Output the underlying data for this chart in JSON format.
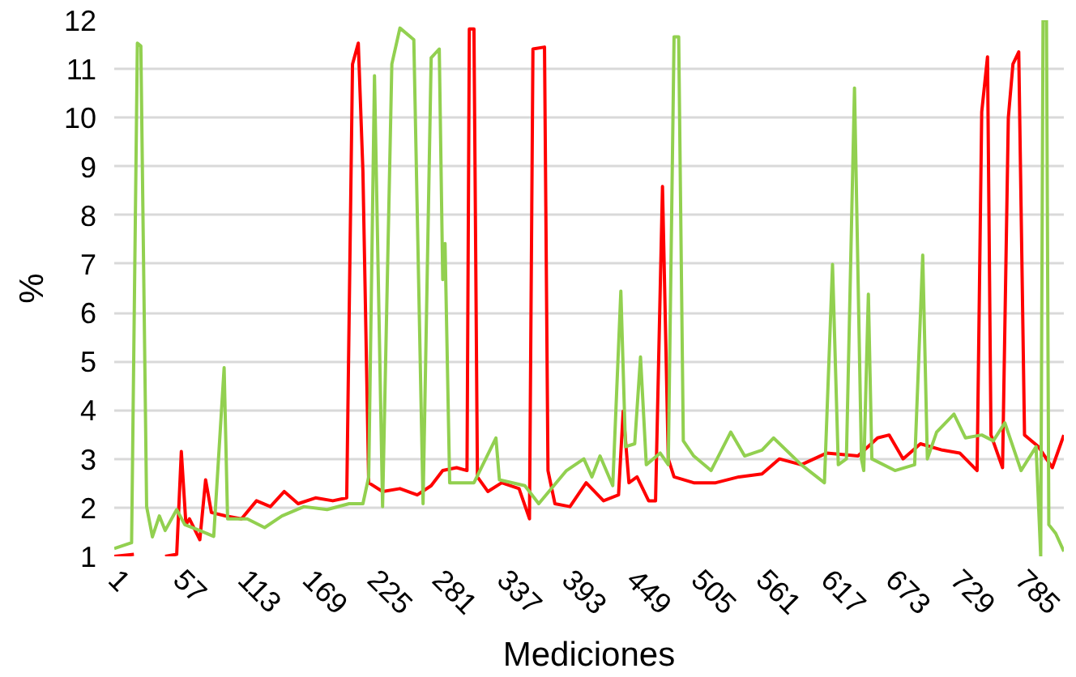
{
  "chart_data": {
    "type": "line",
    "xlabel": "Mediciones",
    "ylabel": "%",
    "xlim": [
      1,
      822
    ],
    "ylim": [
      1,
      12
    ],
    "xticks": [
      1,
      57,
      113,
      169,
      225,
      281,
      337,
      393,
      449,
      505,
      561,
      617,
      673,
      729,
      785
    ],
    "yticks": [
      1,
      2,
      3,
      4,
      5,
      6,
      7,
      8,
      9,
      10,
      11,
      12
    ],
    "grid": "y",
    "line_style": "solid",
    "series": [
      {
        "color": "#ff0000",
        "x": [
          1,
          18,
          26,
          42,
          45,
          55,
          59,
          63,
          66,
          75,
          80,
          85,
          97,
          111,
          124,
          136,
          148,
          160,
          175,
          190,
          202,
          207,
          212,
          216,
          221,
          233,
          248,
          263,
          275,
          285,
          297,
          306,
          308,
          312,
          315,
          324,
          336,
          351,
          360,
          363,
          373,
          376,
          382,
          395,
          409,
          424,
          437,
          441,
          446,
          453,
          463,
          469,
          475,
          480,
          485,
          502,
          521,
          541,
          561,
          576,
          595,
          617,
          644,
          661,
          671,
          683,
          698,
          717,
          732,
          747,
          751,
          756,
          759,
          769,
          774,
          778,
          783,
          788,
          800,
          812,
          822
        ],
        "values": [
          1.0,
          1.04,
          null,
          null,
          1.0,
          1.04,
          3.15,
          1.65,
          1.77,
          1.34,
          2.57,
          1.9,
          1.83,
          1.77,
          2.14,
          2.02,
          2.33,
          2.08,
          2.2,
          2.14,
          2.2,
          11.1,
          11.53,
          8.9,
          2.51,
          2.33,
          2.39,
          2.26,
          2.45,
          2.76,
          2.82,
          2.76,
          11.82,
          11.82,
          2.63,
          2.33,
          2.51,
          2.39,
          1.77,
          11.41,
          11.45,
          2.76,
          2.08,
          2.02,
          2.51,
          2.14,
          2.26,
          3.98,
          2.51,
          2.63,
          2.14,
          2.14,
          8.59,
          3.0,
          2.63,
          2.51,
          2.51,
          2.63,
          2.69,
          3.0,
          2.88,
          3.12,
          3.06,
          3.43,
          3.49,
          3.0,
          3.31,
          3.18,
          3.12,
          2.76,
          10.12,
          11.25,
          3.49,
          2.82,
          10.0,
          11.1,
          11.35,
          3.49,
          3.25,
          2.82,
          3.49
        ]
      },
      {
        "color": "#92d050",
        "x": [
          1,
          16,
          21,
          24,
          29,
          34,
          40,
          45,
          55,
          62,
          75,
          87,
          96,
          99,
          116,
          131,
          146,
          165,
          185,
          204,
          216,
          221,
          226,
          233,
          241,
          248,
          260,
          268,
          275,
          282,
          285,
          287,
          291,
          312,
          331,
          334,
          356,
          368,
          392,
          407,
          414,
          421,
          432,
          439,
          443,
          451,
          456,
          461,
          473,
          480,
          485,
          489,
          493,
          502,
          517,
          534,
          546,
          561,
          571,
          595,
          615,
          622,
          627,
          634,
          641,
          647,
          649,
          653,
          656,
          676,
          693,
          700,
          704,
          712,
          727,
          737,
          751,
          761,
          771,
          785,
          798,
          802,
          804,
          807,
          809,
          815,
          822
        ],
        "values": [
          1.16,
          1.28,
          11.53,
          11.47,
          2.02,
          1.4,
          1.83,
          1.53,
          1.96,
          1.65,
          1.53,
          1.41,
          4.87,
          1.77,
          1.77,
          1.59,
          1.83,
          2.02,
          1.96,
          2.08,
          2.08,
          2.63,
          10.86,
          2.02,
          11.1,
          11.84,
          11.6,
          2.08,
          11.23,
          11.41,
          6.68,
          7.42,
          2.51,
          2.51,
          3.43,
          2.57,
          2.45,
          2.08,
          2.76,
          3.0,
          2.63,
          3.06,
          2.45,
          6.44,
          3.25,
          3.31,
          5.09,
          2.88,
          3.12,
          2.88,
          11.66,
          11.66,
          3.37,
          3.06,
          2.76,
          3.55,
          3.06,
          3.18,
          3.43,
          2.88,
          2.51,
          6.99,
          2.88,
          3.0,
          10.61,
          3.0,
          2.76,
          6.38,
          3.0,
          2.76,
          2.88,
          7.18,
          3.0,
          3.55,
          3.92,
          3.43,
          3.49,
          3.37,
          3.74,
          2.76,
          3.25,
          1.0,
          12,
          12,
          1.65,
          1.47,
          1.1
        ]
      }
    ]
  }
}
